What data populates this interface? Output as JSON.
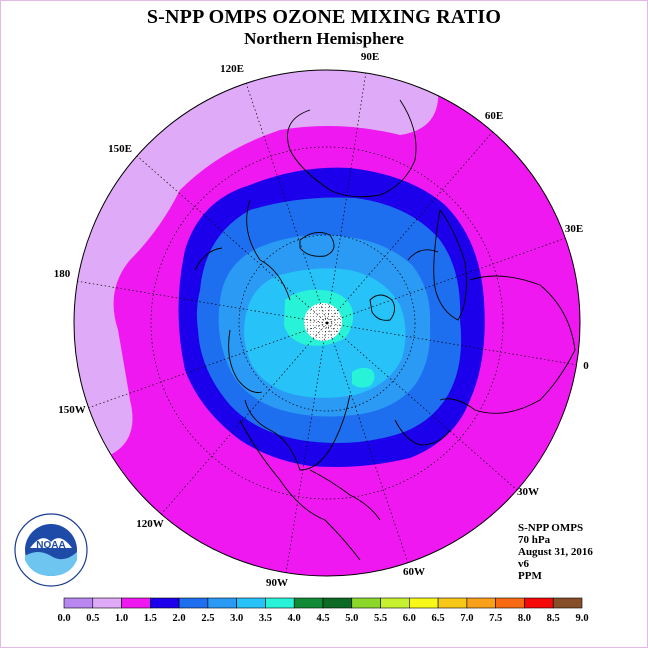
{
  "header": {
    "title": "S-NPP OMPS OZONE MIXING RATIO",
    "subtitle": "Northern Hemisphere"
  },
  "map": {
    "projection": "north-polar-stereographic",
    "longitude_labels": [
      "90E",
      "60E",
      "30E",
      "0",
      "30W",
      "60W",
      "90W",
      "120W",
      "150W",
      "180",
      "150E",
      "120E"
    ],
    "pole_missing_data": "white dotted"
  },
  "info": {
    "lines": [
      "S-NPP OMPS",
      "70 hPa",
      "August 31, 2016",
      "v6",
      "PPM"
    ]
  },
  "logo": {
    "text": "NOAA",
    "ring_text": "NATIONAL OCEANIC AND ATMOSPHERIC ADMINISTRATION · U.S. DEPARTMENT OF COMMERCE"
  },
  "colorbar": {
    "labels": [
      "0.0",
      "0.5",
      "1.0",
      "1.5",
      "2.0",
      "2.5",
      "3.0",
      "3.5",
      "4.0",
      "4.5",
      "5.0",
      "5.5",
      "6.0",
      "6.5",
      "7.0",
      "7.5",
      "8.0",
      "8.5",
      "9.0"
    ],
    "colors": [
      "#b888f0",
      "#dfaaf7",
      "#f018f0",
      "#1c00ec",
      "#1e6ef0",
      "#2a9af5",
      "#26c2f8",
      "#28f3d8",
      "#118a36",
      "#0d6a24",
      "#8cd82a",
      "#c6f030",
      "#f8f818",
      "#f8c818",
      "#f8a01a",
      "#f86a12",
      "#f40808",
      "#864f2a"
    ]
  }
}
